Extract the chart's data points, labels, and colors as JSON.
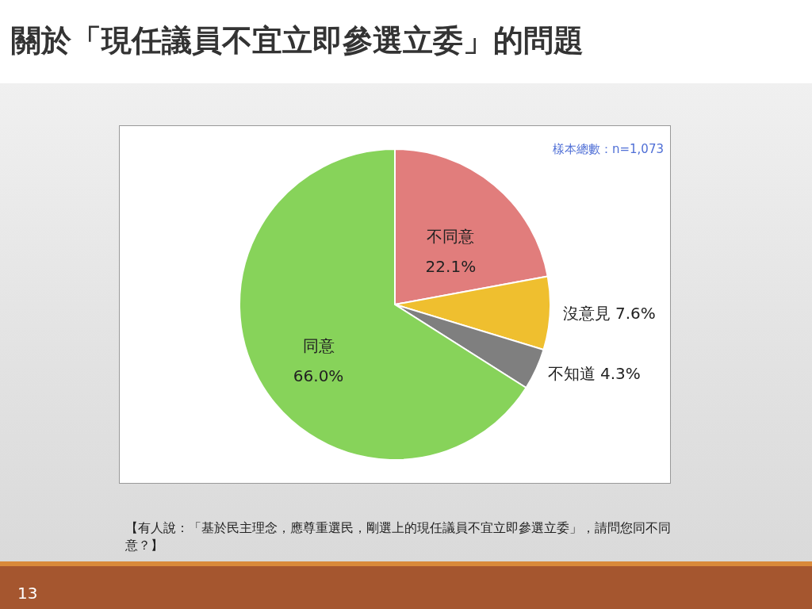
{
  "chart_data": {
    "type": "pie",
    "title": "關於「現任議員不宜立即參選立委」的問題",
    "categories": [
      "不同意",
      "沒意見",
      "不知道",
      "同意"
    ],
    "values": [
      22.1,
      7.6,
      4.3,
      66.0
    ],
    "colors": [
      "#e17d7c",
      "#efbf2f",
      "#7f7f7f",
      "#87d35a"
    ],
    "value_labels": [
      "22.1%",
      "7.6%",
      "4.3%",
      "66.0%"
    ],
    "annotations": [
      "樣本總數：n=1,073",
      "【有人說：「基於民主理念，應尊重選民，剛選上的現任議員不宜立即參選立委」，請問您同不同意？】",
      "13"
    ]
  }
}
